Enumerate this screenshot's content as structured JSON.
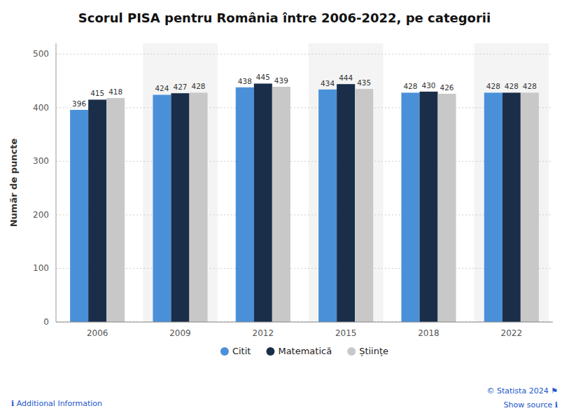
{
  "chart_data": {
    "type": "bar",
    "title": "Scorul PISA pentru România între 2006-2022, pe categorii",
    "ylabel": "Număr de puncte",
    "categories": [
      "2006",
      "2009",
      "2012",
      "2015",
      "2018",
      "2022"
    ],
    "series": [
      {
        "name": "Citit",
        "color": "#4a90d9",
        "values": [
          396,
          424,
          438,
          434,
          428,
          428
        ]
      },
      {
        "name": "Matematică",
        "color": "#1a2e4a",
        "values": [
          415,
          427,
          445,
          444,
          430,
          428
        ]
      },
      {
        "name": "Științe",
        "color": "#c8c8c8",
        "values": [
          418,
          428,
          439,
          435,
          426,
          428
        ]
      }
    ],
    "ylim": [
      0,
      520
    ],
    "yticks": [
      0,
      100,
      200,
      300,
      400,
      500
    ],
    "grid": true,
    "data_labels": true,
    "legend": "bottom",
    "annotations": [
      "ℹ  Additional Information",
      "© Statista 2024  ⚑",
      "Show source  ℹ"
    ]
  }
}
